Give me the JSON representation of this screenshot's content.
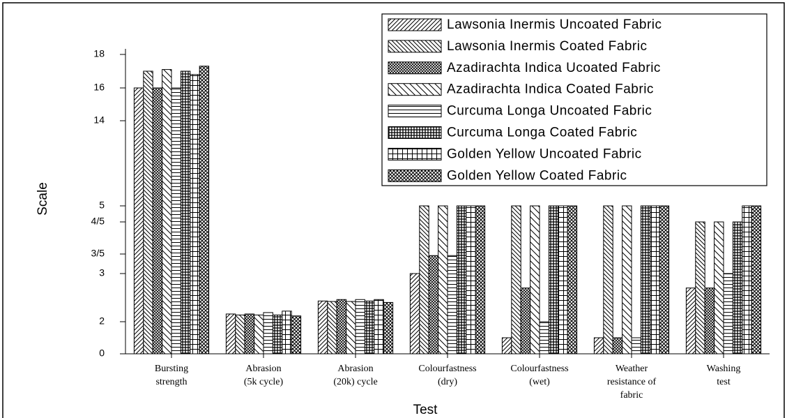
{
  "chart_data": {
    "type": "bar",
    "y_label": "Scale",
    "x_label": "Test",
    "categories": [
      [
        "Bursting",
        "strength"
      ],
      [
        "Abrasion",
        "(5k cycle)"
      ],
      [
        "Abrasion",
        "(20k) cycle"
      ],
      [
        "Colourfastness",
        "(dry)"
      ],
      [
        "Colourfastness",
        "(wet)"
      ],
      [
        "Weather",
        "resistance of",
        "fabric"
      ],
      [
        "Washing",
        "test"
      ]
    ],
    "yticks": [
      0,
      2,
      3,
      {
        "value": 3.5,
        "label": "3/5"
      },
      {
        "value": 4.5,
        "label": "4/5"
      },
      5,
      14,
      16,
      18
    ],
    "ylim": [
      0,
      18
    ],
    "series": [
      {
        "name": "Lawsonia Inermis Uncoated Fabric",
        "color": "#000000",
        "values": [
          16.0,
          2.16,
          2.43,
          3.0,
          1.0,
          1.0,
          2.7
        ]
      },
      {
        "name": "Lawsonia Inermis Coated Fabric",
        "color": "#000000",
        "values": [
          17.0,
          2.14,
          2.42,
          5,
          5,
          5,
          4.5
        ]
      },
      {
        "name": "Azadirachta Indica Ucoated Fabric",
        "color": "#000000",
        "values": [
          16.0,
          2.16,
          2.46,
          3.46,
          2.7,
          1.0,
          2.7
        ]
      },
      {
        "name": "Azadirachta Indica Coated Fabric",
        "color": "#000000",
        "values": [
          17.1,
          2.14,
          2.42,
          5,
          5,
          5,
          4.5
        ]
      },
      {
        "name": "Curcuma Longa Uncoated Fabric",
        "color": "#000000",
        "values": [
          16.0,
          2.19,
          2.46,
          3.46,
          2.0,
          1.0,
          3.0
        ]
      },
      {
        "name": "Curcuma Longa Coated Fabric",
        "color": "#000000",
        "values": [
          17.0,
          2.14,
          2.43,
          5,
          5,
          5,
          4.5
        ]
      },
      {
        "name": "Golden Yellow Uncoated Fabric",
        "color": "#000000",
        "values": [
          16.8,
          2.22,
          2.46,
          5,
          5,
          5,
          5
        ]
      },
      {
        "name": "Golden Yellow Coated Fabric",
        "color": "#000000",
        "values": [
          17.3,
          2.12,
          2.4,
          5,
          5,
          5,
          5
        ]
      }
    ],
    "legend": "upper right"
  }
}
